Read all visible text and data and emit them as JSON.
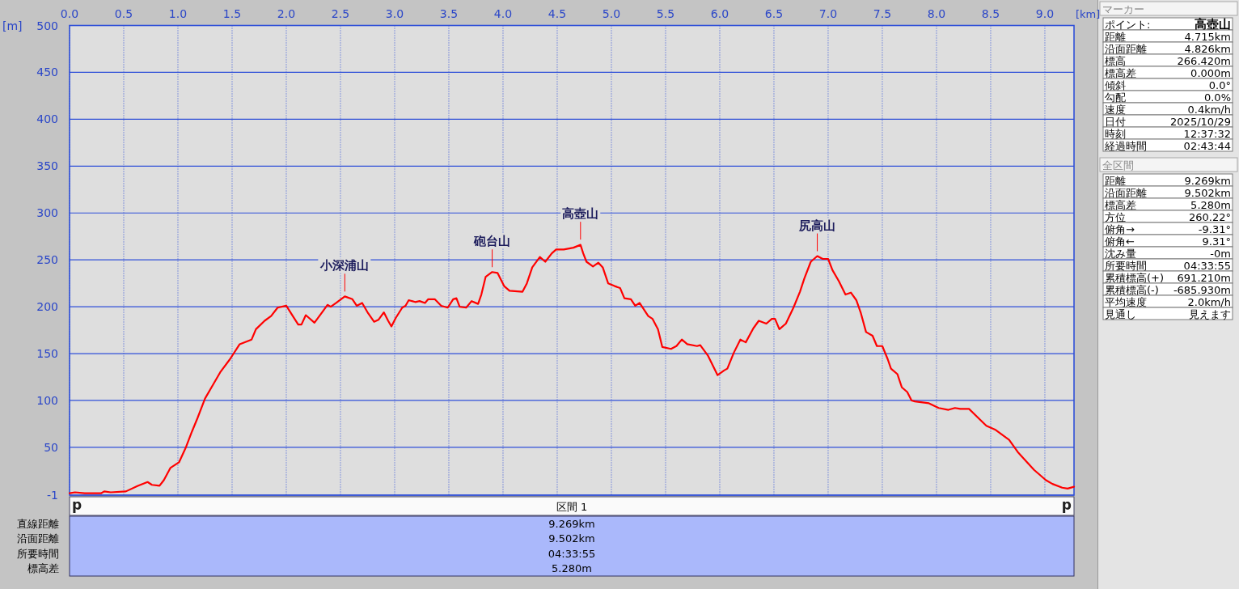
{
  "chart_data": [
    {
      "type": "line",
      "xlabel": "[km]",
      "ylabel": "[m]",
      "color": "#ff0000",
      "grid": true,
      "xlim": [
        0,
        9.269
      ],
      "ylim": [
        -1,
        500
      ],
      "xticks": [
        {
          "value": 0,
          "label": "0.0"
        },
        0.5,
        {
          "value": 1,
          "label": "1.0"
        },
        1.5,
        {
          "value": 2,
          "label": "2.0"
        },
        2.5,
        {
          "value": 3,
          "label": "3.0"
        },
        3.5,
        {
          "value": 4,
          "label": "4.0"
        },
        4.5,
        {
          "value": 5,
          "label": "5.0"
        },
        5.5,
        {
          "value": 6,
          "label": "6.0"
        },
        6.5,
        {
          "value": 7,
          "label": "7.0"
        },
        7.5,
        {
          "value": 8,
          "label": "8.0"
        },
        8.5,
        {
          "value": 9,
          "label": "9.0"
        }
      ],
      "yticks": [
        -1,
        50,
        100,
        150,
        200,
        250,
        300,
        350,
        400,
        450,
        500
      ],
      "x": [
        0,
        0.05,
        0.14,
        0.29,
        0.32,
        0.38,
        0.52,
        0.63,
        0.72,
        0.76,
        0.83,
        0.87,
        0.93,
        1.01,
        1.07,
        1.13,
        1.18,
        1.25,
        1.31,
        1.39,
        1.48,
        1.57,
        1.68,
        1.72,
        1.8,
        1.86,
        1.92,
        2.0,
        2.06,
        2.11,
        2.14,
        2.18,
        2.21,
        2.26,
        2.33,
        2.38,
        2.41,
        2.46,
        2.54,
        2.61,
        2.65,
        2.7,
        2.75,
        2.81,
        2.85,
        2.9,
        2.94,
        2.97,
        3.01,
        3.07,
        3.1,
        3.13,
        3.19,
        3.23,
        3.28,
        3.31,
        3.37,
        3.43,
        3.49,
        3.54,
        3.57,
        3.6,
        3.66,
        3.71,
        3.77,
        3.8,
        3.84,
        3.9,
        3.95,
        4.01,
        4.06,
        4.18,
        4.22,
        4.27,
        4.34,
        4.39,
        4.45,
        4.49,
        4.56,
        4.65,
        4.715,
        4.74,
        4.77,
        4.83,
        4.88,
        4.92,
        4.97,
        5.03,
        5.08,
        5.12,
        5.18,
        5.22,
        5.26,
        5.34,
        5.38,
        5.43,
        5.47,
        5.55,
        5.6,
        5.65,
        5.7,
        5.79,
        5.82,
        5.89,
        5.98,
        6.04,
        6.07,
        6.13,
        6.19,
        6.24,
        6.31,
        6.36,
        6.43,
        6.48,
        6.51,
        6.55,
        6.61,
        6.68,
        6.74,
        6.78,
        6.84,
        6.9,
        6.95,
        7.0,
        7.04,
        7.1,
        7.16,
        7.21,
        7.26,
        7.3,
        7.35,
        7.41,
        7.45,
        7.5,
        7.55,
        7.58,
        7.64,
        7.68,
        7.73,
        7.77,
        7.8,
        7.93,
        8.02,
        8.11,
        8.17,
        8.22,
        8.3,
        8.46,
        8.54,
        8.67,
        8.75,
        8.9,
        9.01,
        9.07,
        9.16,
        9.21,
        9.269
      ],
      "values": [
        1,
        2,
        1,
        1,
        3,
        2,
        3,
        9,
        13,
        10,
        9,
        15,
        28,
        34,
        49,
        67,
        81,
        102,
        114,
        130,
        144,
        160,
        165,
        176,
        185,
        190,
        199,
        201,
        190,
        181,
        181,
        191,
        188,
        183,
        194,
        202,
        200,
        204,
        211,
        208,
        201,
        204,
        194,
        184,
        186,
        194,
        185,
        179,
        188,
        199,
        201,
        207,
        205,
        206,
        204,
        208,
        208,
        201,
        199,
        208,
        209,
        200,
        199,
        206,
        203,
        213,
        232,
        237,
        236,
        222,
        217,
        216,
        225,
        242,
        253,
        248,
        257,
        261,
        261,
        263,
        266,
        257,
        248,
        243,
        247,
        242,
        225,
        222,
        220,
        209,
        208,
        201,
        204,
        190,
        187,
        176,
        157,
        155,
        158,
        165,
        160,
        158,
        159,
        148,
        127,
        132,
        134,
        151,
        165,
        162,
        177,
        185,
        182,
        187,
        187,
        176,
        182,
        199,
        216,
        230,
        248,
        254,
        251,
        251,
        239,
        227,
        213,
        215,
        207,
        194,
        173,
        169,
        158,
        158,
        144,
        134,
        128,
        114,
        109,
        100,
        99,
        97,
        92,
        90,
        92,
        91,
        91,
        73,
        69,
        58,
        45,
        26,
        15,
        11,
        7,
        6,
        8
      ],
      "annotations": [
        {
          "text": "小深浦山",
          "x": 2.54,
          "y": 211
        },
        {
          "text": "砲台山",
          "x": 3.9,
          "y": 237
        },
        {
          "text": "高壺山",
          "x": 4.715,
          "y": 266.42
        },
        {
          "text": "尻高山",
          "x": 6.9,
          "y": 254
        }
      ]
    },
    {
      "type": "other",
      "title": "マーカー",
      "annotations": [
        "ポイント:",
        "高壺山",
        "距離",
        "4.715km",
        "沿面距離",
        "4.826km",
        "標高",
        "266.420m",
        "標高差",
        "0.000m",
        "傾斜",
        "0.0°",
        "勾配",
        "0.0%",
        "速度",
        "0.4km/h",
        "日付",
        "2025/10/29",
        "時刻",
        "12:37:32",
        "経過時間",
        "02:43:44"
      ]
    },
    {
      "type": "other",
      "title": "全区間",
      "annotations": [
        "距離",
        "9.269km",
        "沿面距離",
        "9.502km",
        "標高差",
        "5.280m",
        "方位",
        "260.22°",
        "俯角→",
        "-9.31°",
        "俯角←",
        "9.31°",
        "沈み量",
        "-0m",
        "所要時間",
        "04:33:55",
        "累積標高(+)",
        "691.210m",
        "累積標高(-)",
        "-685.930m",
        "平均速度",
        "2.0km/h",
        "見通し",
        "見えます"
      ]
    },
    {
      "type": "other",
      "title": "区間 1",
      "annotations": [
        "p",
        "p",
        "直線距離",
        "9.269km",
        "沿面距離",
        "9.502km",
        "所要時間",
        "04:33:55",
        "標高差",
        "5.280m"
      ]
    }
  ]
}
